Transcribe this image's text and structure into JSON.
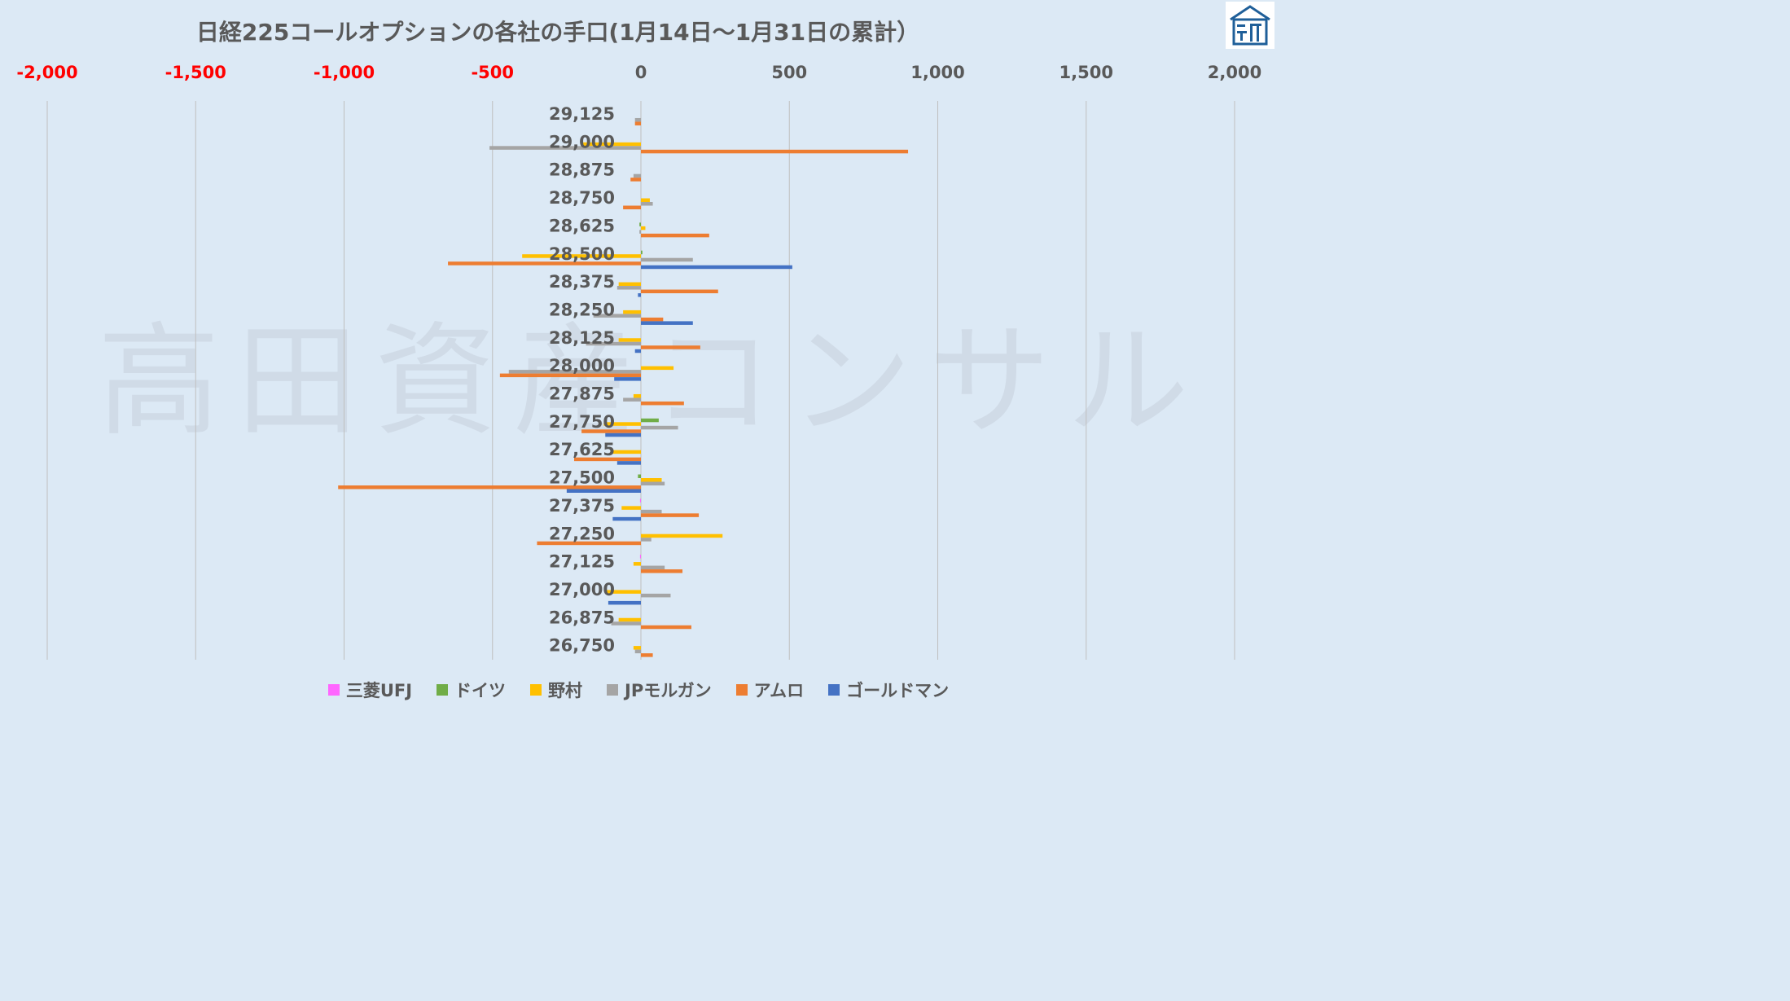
{
  "title": "日経225コールオプションの各社の手口(1月14日～1月31日の累計）",
  "watermark": "高田資産コンサル",
  "colors": {
    "negative_tick": "#ff0000",
    "positive_tick": "#595959",
    "grid": "#bfbfbf",
    "logo": "#1f5f99"
  },
  "chart_data": {
    "type": "bar",
    "orientation": "horizontal",
    "xlim": [
      -2000,
      2000
    ],
    "x_ticks": [
      -2000,
      -1500,
      -1000,
      -500,
      0,
      500,
      1000,
      1500,
      2000
    ],
    "x_tick_labels": [
      "-2,000",
      "-1,500",
      "-1,000",
      "-500",
      "0",
      "500",
      "1,000",
      "1,500",
      "2,000"
    ],
    "categories": [
      "29,125",
      "29,000",
      "28,875",
      "28,750",
      "28,625",
      "28,500",
      "28,375",
      "28,250",
      "28,125",
      "28,000",
      "27,875",
      "27,750",
      "27,625",
      "27,500",
      "27,375",
      "27,250",
      "27,125",
      "27,000",
      "26,875",
      "26,750"
    ],
    "grid": true,
    "legend_position": "bottom",
    "series": [
      {
        "name": "三菱UFJ",
        "color": "#ff66ff",
        "values": [
          0,
          0,
          0,
          0,
          0,
          0,
          0,
          0,
          0,
          0,
          0,
          0,
          0,
          0,
          -3,
          0,
          -3,
          0,
          0,
          0
        ]
      },
      {
        "name": "ドイツ",
        "color": "#70ad47",
        "values": [
          0,
          0,
          0,
          0,
          -5,
          5,
          0,
          0,
          0,
          0,
          0,
          60,
          0,
          -10,
          0,
          0,
          0,
          0,
          0,
          0
        ]
      },
      {
        "name": "野村",
        "color": "#ffc000",
        "values": [
          0,
          -200,
          0,
          30,
          15,
          -400,
          -75,
          -60,
          -75,
          110,
          -25,
          -125,
          -100,
          70,
          -65,
          275,
          -25,
          -120,
          -75,
          -25
        ]
      },
      {
        "name": "JPモルガン",
        "color": "#a5a5a5",
        "values": [
          -20,
          -510,
          -25,
          40,
          -5,
          175,
          -80,
          -160,
          -185,
          -445,
          -60,
          125,
          0,
          80,
          70,
          35,
          80,
          100,
          -100,
          -20
        ]
      },
      {
        "name": "アムロ",
        "color": "#ed7d31",
        "values": [
          -20,
          900,
          -35,
          -60,
          230,
          -650,
          260,
          75,
          200,
          -475,
          145,
          -200,
          -225,
          -1020,
          195,
          -350,
          140,
          0,
          170,
          40
        ]
      },
      {
        "name": "ゴールドマン",
        "color": "#4472c4",
        "values": [
          0,
          0,
          0,
          0,
          0,
          510,
          -10,
          175,
          -20,
          -90,
          0,
          -120,
          -80,
          -250,
          -95,
          0,
          0,
          -110,
          0,
          0
        ]
      }
    ]
  }
}
